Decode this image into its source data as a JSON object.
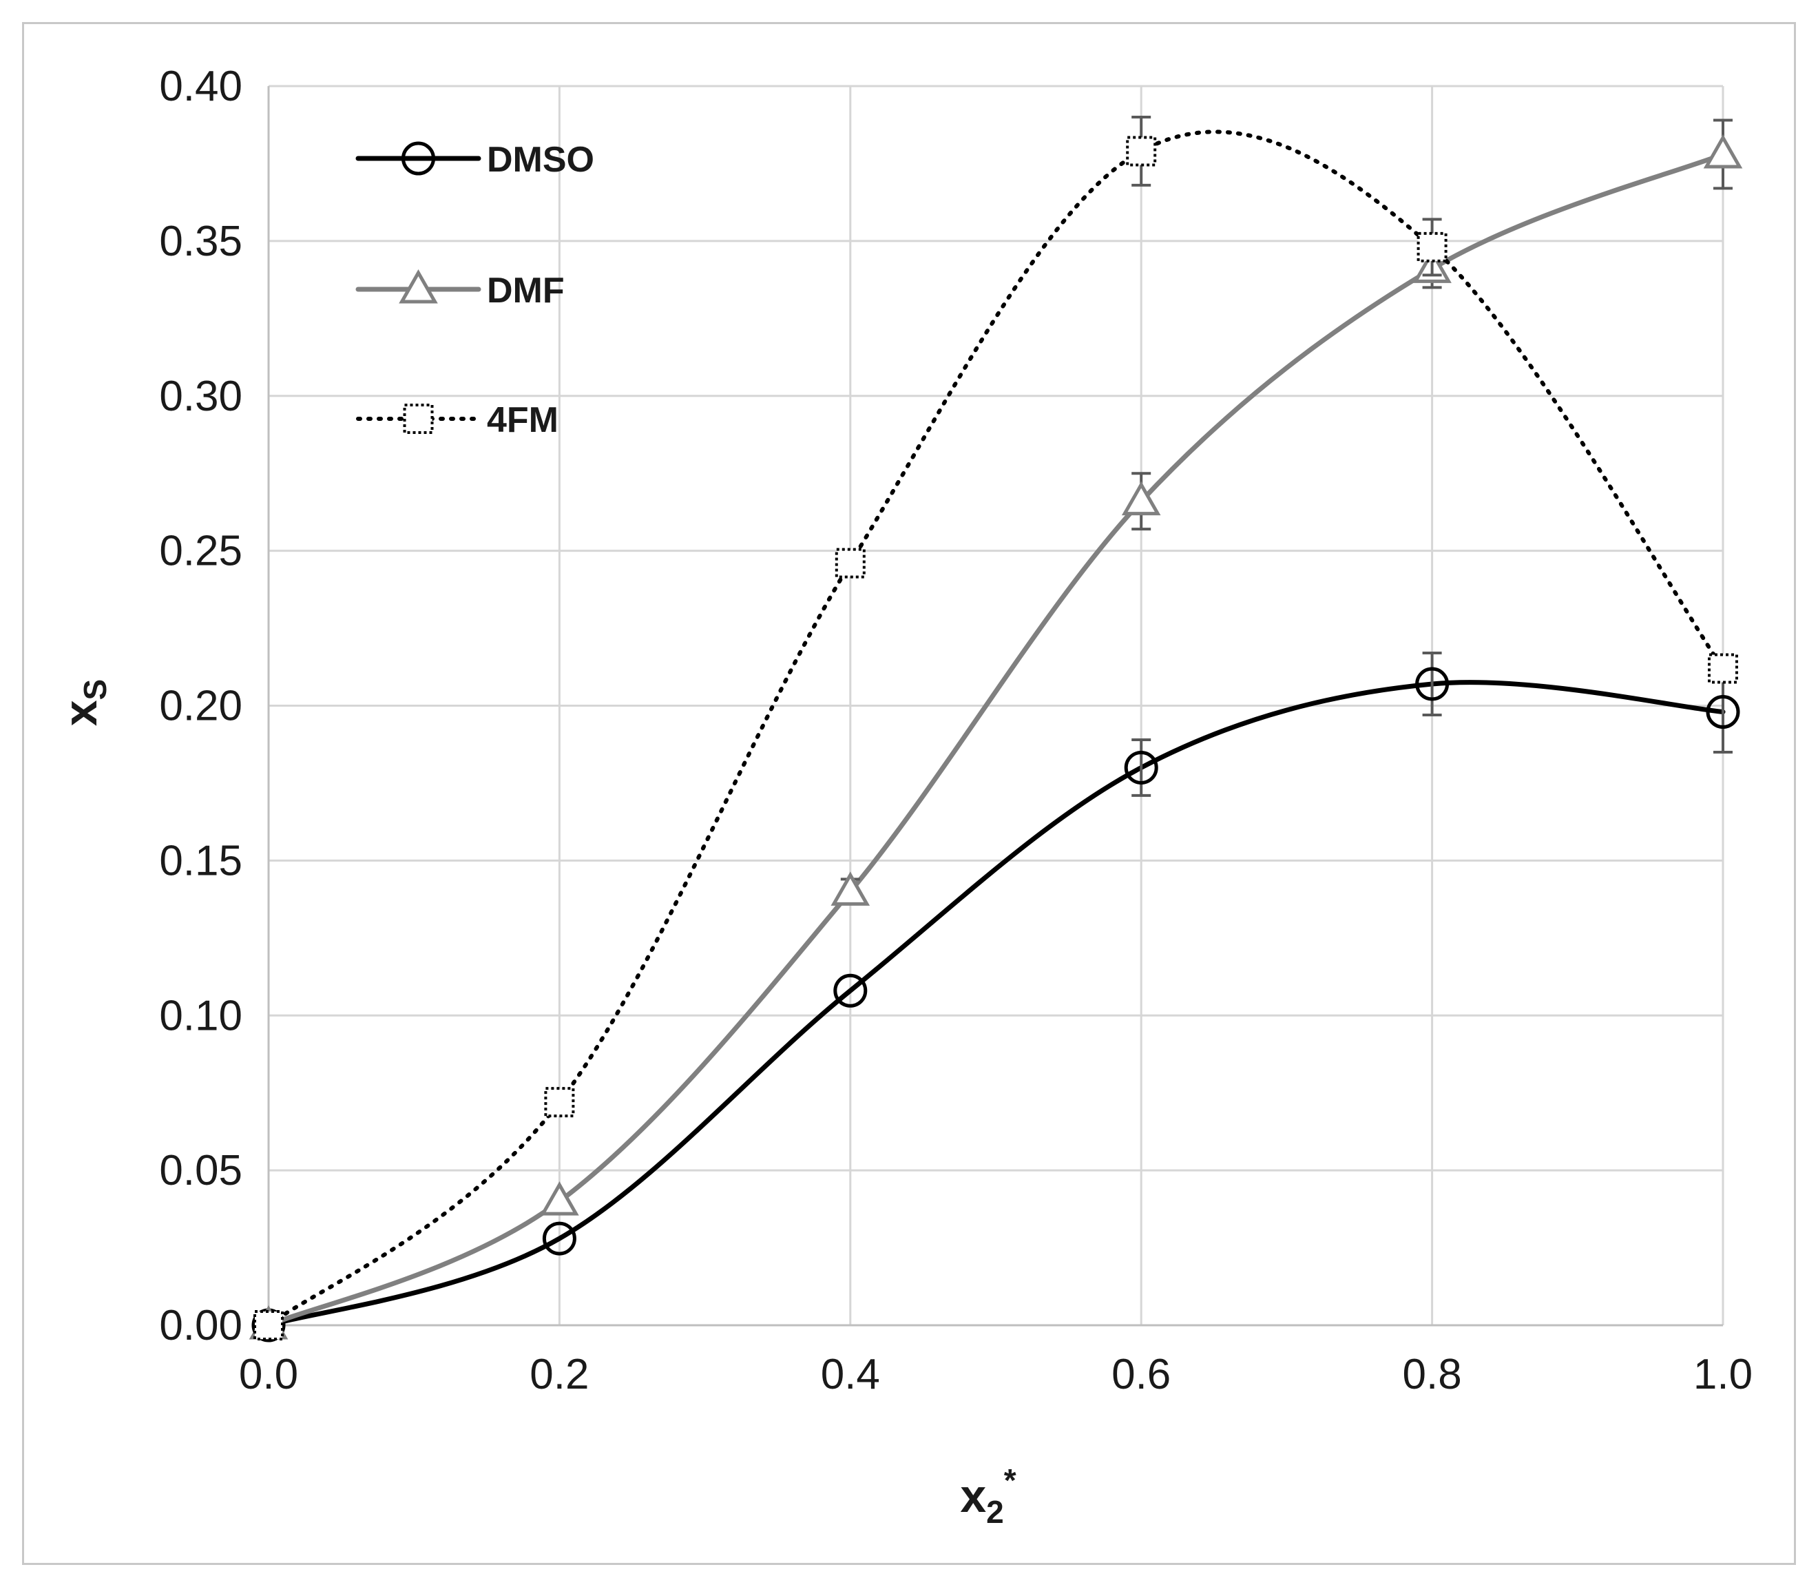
{
  "chart_data": {
    "type": "line",
    "xlabel": {
      "main": "x",
      "sub": "2",
      "sup": "*"
    },
    "ylabel": {
      "main": "x",
      "sub": "S"
    },
    "xlim": [
      0,
      1
    ],
    "ylim": [
      0,
      0.4
    ],
    "x_ticks": [
      "0.0",
      "0.2",
      "0.4",
      "0.6",
      "0.8",
      "1.0"
    ],
    "y_ticks": [
      "0.00",
      "0.05",
      "0.10",
      "0.15",
      "0.20",
      "0.25",
      "0.30",
      "0.35",
      "0.40"
    ],
    "x_tick_values": [
      0,
      0.2,
      0.4,
      0.6,
      0.8,
      1.0
    ],
    "y_tick_values": [
      0,
      0.05,
      0.1,
      0.15,
      0.2,
      0.25,
      0.3,
      0.35,
      0.4
    ],
    "grid": true,
    "legend_position": "top-left",
    "x": [
      0,
      0.2,
      0.4,
      0.6,
      0.8,
      1.0
    ],
    "series": [
      {
        "name": "DMSO",
        "marker": "circle",
        "line": "solid",
        "color": "#000000",
        "values": [
          0.0,
          0.028,
          0.108,
          0.18,
          0.207,
          0.198
        ],
        "errors": [
          0.0,
          0.0,
          0.0,
          0.009,
          0.01,
          0.013
        ]
      },
      {
        "name": "DMF",
        "marker": "triangle",
        "line": "solid",
        "color": "#808080",
        "values": [
          0.0,
          0.04,
          0.14,
          0.266,
          0.341,
          0.378
        ],
        "errors": [
          0.0,
          0.0,
          0.004,
          0.009,
          0.006,
          0.011
        ]
      },
      {
        "name": "4FM",
        "marker": "square",
        "line": "dotted",
        "color": "#000000",
        "values": [
          0.0,
          0.072,
          0.246,
          0.379,
          0.348,
          0.212
        ],
        "errors": [
          0.0,
          0.004,
          0.004,
          0.011,
          0.009,
          0.0
        ]
      }
    ]
  }
}
